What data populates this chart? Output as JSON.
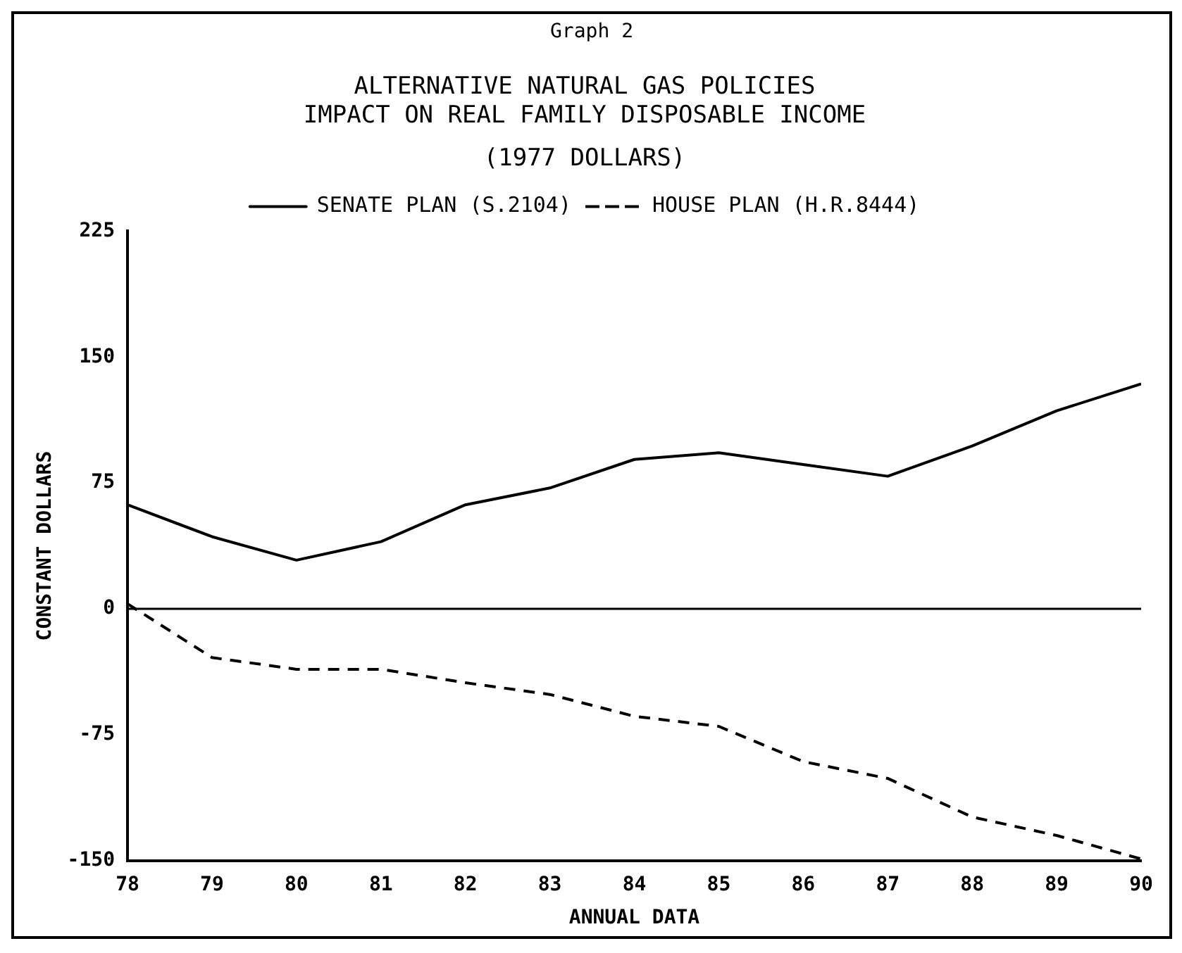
{
  "chart_data": {
    "type": "line",
    "title": "ALTERNATIVE NATURAL GAS POLICIES\nIMPACT ON REAL FAMILY DISPOSABLE INCOME",
    "subtitle": "(1977 DOLLARS)",
    "annotations": [
      "Graph 2"
    ],
    "xlabel": "ANNUAL DATA",
    "ylabel": "CONSTANT DOLLARS",
    "x": [
      78,
      79,
      80,
      81,
      82,
      83,
      84,
      85,
      86,
      87,
      88,
      89,
      90
    ],
    "series": [
      {
        "name": "SENATE PLAN (S.2104)",
        "color": "#000000",
        "line_style": "solid",
        "values": [
          62,
          43,
          29,
          40,
          62,
          72,
          89,
          93,
          86,
          79,
          97,
          118,
          134
        ]
      },
      {
        "name": "HOUSE PLAN (H.R.8444)",
        "color": "#000000",
        "line_style": "dashed",
        "values": [
          3,
          -29,
          -36,
          -36,
          -44,
          -51,
          -64,
          -70,
          -91,
          -101,
          -124,
          -135,
          -149
        ]
      }
    ],
    "xlim": [
      78,
      90
    ],
    "xticks": [
      78,
      79,
      80,
      81,
      82,
      83,
      84,
      85,
      86,
      87,
      88,
      89,
      90
    ],
    "ylim": [
      -150,
      225
    ],
    "yticks": [
      -150,
      -75,
      0,
      75,
      150,
      225
    ],
    "ref_lines": [
      {
        "axis": "y",
        "value": 0,
        "color": "#000000"
      }
    ],
    "grid": false,
    "legend": "top",
    "marker": "none"
  }
}
